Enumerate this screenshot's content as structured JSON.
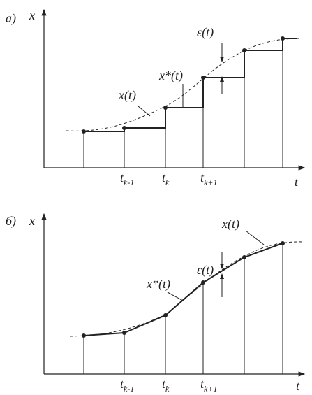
{
  "panels": [
    {
      "label": "а)",
      "y_axis": "x",
      "x_axis": "t",
      "error_label": "ε(t)",
      "approx_label": "x*(t)",
      "signal_label": "x(t)",
      "ticks": [
        {
          "base": "t",
          "sub": "k-1"
        },
        {
          "base": "t",
          "sub": "k"
        },
        {
          "base": "t",
          "sub": "k+1"
        }
      ]
    },
    {
      "label": "б)",
      "y_axis": "x",
      "x_axis": "t",
      "error_label": "ε(t)",
      "approx_label": "x*(t)",
      "signal_label": "x(t)",
      "ticks": [
        {
          "base": "t",
          "sub": "k-1"
        },
        {
          "base": "t",
          "sub": "k"
        },
        {
          "base": "t",
          "sub": "k+1"
        }
      ]
    }
  ]
}
